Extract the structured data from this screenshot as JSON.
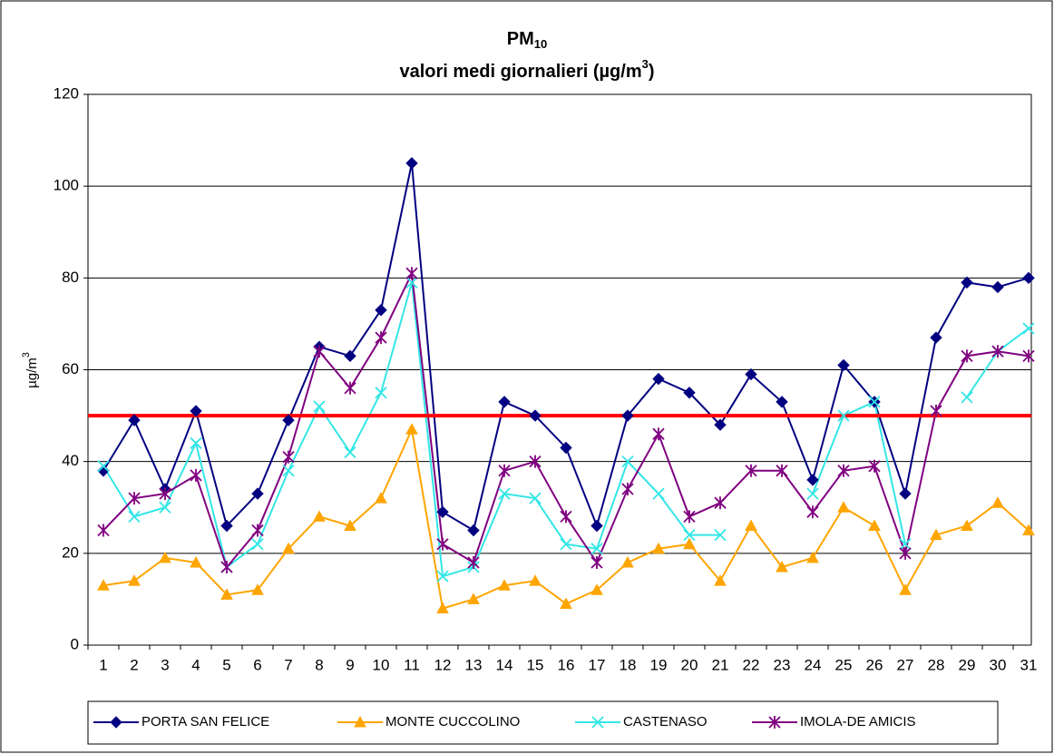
{
  "chart_data": {
    "type": "line",
    "title_main": "PM",
    "title_sub": "10",
    "subtitle": "valori medi giornalieri (µg/m",
    "subtitle_sup": "3",
    "subtitle_end": ")",
    "y_label": "µg/m",
    "y_label_sup": "3",
    "categories": [
      "1",
      "2",
      "3",
      "4",
      "5",
      "6",
      "7",
      "8",
      "9",
      "10",
      "11",
      "12",
      "13",
      "14",
      "15",
      "16",
      "17",
      "18",
      "19",
      "20",
      "21",
      "22",
      "23",
      "24",
      "25",
      "26",
      "27",
      "28",
      "29",
      "30",
      "31"
    ],
    "series": [
      {
        "name": "PORTA SAN FELICE",
        "color": "#000080",
        "marker": "diamond",
        "values": [
          38,
          49,
          34,
          51,
          26,
          33,
          49,
          65,
          63,
          73,
          105,
          29,
          25,
          53,
          50,
          43,
          26,
          50,
          58,
          55,
          48,
          59,
          53,
          36,
          61,
          53,
          33,
          67,
          79,
          78,
          80
        ]
      },
      {
        "name": "MONTE CUCCOLINO",
        "color": "#FFA500",
        "marker": "triangle",
        "values": [
          13,
          14,
          19,
          18,
          11,
          12,
          21,
          28,
          26,
          32,
          47,
          8,
          10,
          13,
          14,
          9,
          12,
          18,
          21,
          22,
          14,
          26,
          17,
          19,
          30,
          26,
          12,
          24,
          26,
          31,
          25
        ]
      },
      {
        "name": "CASTENASO",
        "color": "#33E6E6",
        "marker": "x",
        "values": [
          39,
          28,
          30,
          44,
          17,
          22,
          38,
          52,
          42,
          55,
          79,
          15,
          17,
          33,
          32,
          22,
          21,
          40,
          33,
          24,
          24,
          null,
          null,
          33,
          50,
          53,
          22,
          null,
          54,
          64,
          69
        ]
      },
      {
        "name": "IMOLA-DE AMICIS",
        "color": "#800080",
        "marker": "star",
        "values": [
          25,
          32,
          33,
          37,
          17,
          25,
          41,
          64,
          56,
          67,
          81,
          22,
          18,
          38,
          40,
          28,
          18,
          34,
          46,
          28,
          31,
          38,
          38,
          29,
          38,
          39,
          20,
          51,
          63,
          64,
          63
        ]
      }
    ],
    "threshold": 50,
    "threshold_color": "#FF0000",
    "ylim": [
      0,
      120
    ],
    "yticks": [
      0,
      20,
      40,
      60,
      80,
      100,
      120
    ],
    "grid": true,
    "legend": "bottom"
  }
}
